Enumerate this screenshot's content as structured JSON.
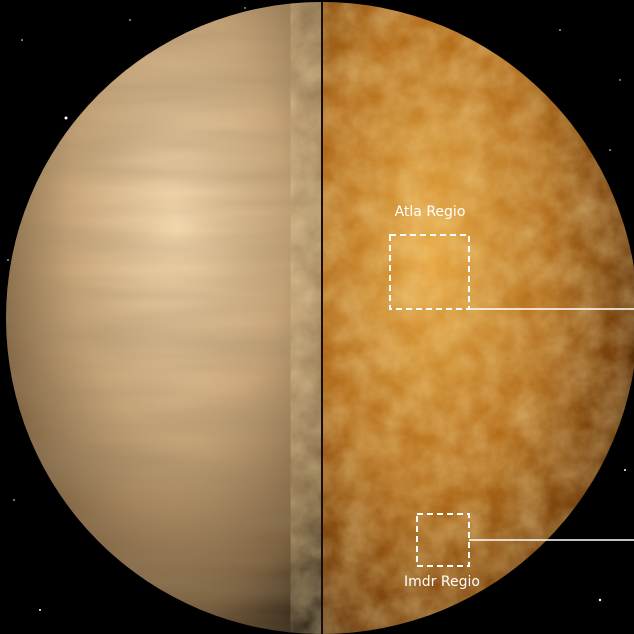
{
  "labels": {
    "atla": "Atla Regio",
    "imdr": "Imdr Regio"
  }
}
